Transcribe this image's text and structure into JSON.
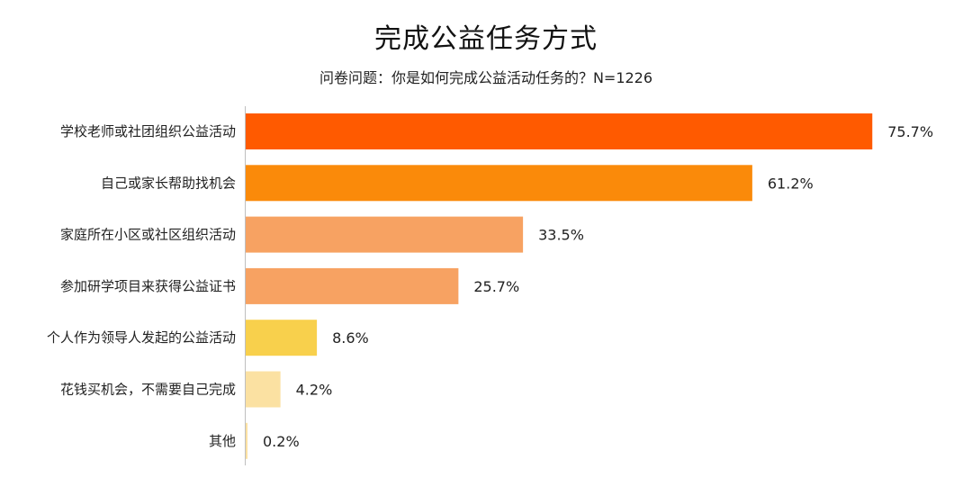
{
  "chart_data": {
    "type": "bar",
    "orientation": "horizontal",
    "title": "完成公益任务方式",
    "subtitle": "问卷问题：你是如何完成公益活动任务的？N=1226",
    "categories": [
      "学校老师或社团组织公益活动",
      "自己或家长帮助找机会",
      "家庭所在小区或社区组织活动",
      "参加研学项目来获得公益证书",
      "个人作为领导人发起的公益活动",
      "花钱买机会，不需要自己完成",
      "其他"
    ],
    "values": [
      75.7,
      61.2,
      33.5,
      25.7,
      8.6,
      4.2,
      0.2
    ],
    "value_labels": [
      "75.7%",
      "61.2%",
      "33.5%",
      "25.7%",
      "8.6%",
      "4.2%",
      "0.2%"
    ],
    "colors": [
      "#FF5A00",
      "#FA8A0A",
      "#F7A262",
      "#F7A262",
      "#F8D04C",
      "#FBE1A2",
      "#FBE1A2"
    ],
    "xlim": [
      0,
      76
    ],
    "grid": false,
    "legend": "none"
  }
}
